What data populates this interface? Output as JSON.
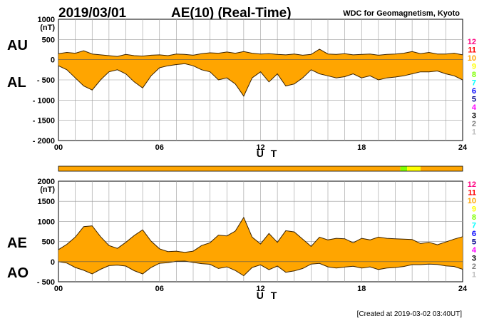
{
  "header": {
    "date": "2019/03/01",
    "title": "AE(10) (Real-Time)",
    "source": "WDC for Geomagnetism, Kyoto"
  },
  "footer": {
    "created": "[Created at 2019-03-02 03:40UT]"
  },
  "legend": {
    "items": [
      {
        "label": "12",
        "color": "#ff0080"
      },
      {
        "label": "11",
        "color": "#ff0000"
      },
      {
        "label": "10",
        "color": "#ffa500"
      },
      {
        "label": "9",
        "color": "#ffff00"
      },
      {
        "label": "8",
        "color": "#7fff00"
      },
      {
        "label": "7",
        "color": "#00ffff"
      },
      {
        "label": "6",
        "color": "#0000ff"
      },
      {
        "label": "5",
        "color": "#00008b"
      },
      {
        "label": "4",
        "color": "#ff00ff"
      },
      {
        "label": "3",
        "color": "#000000"
      },
      {
        "label": "2",
        "color": "#808080"
      },
      {
        "label": "1",
        "color": "#c0c0c0"
      }
    ]
  },
  "chart_data": [
    {
      "type": "area",
      "panel": "AU/AL",
      "ylabel_top": "AU",
      "ylabel_bottom": "AL",
      "unit": "(nT)",
      "xlabel": "U T",
      "xlim": [
        0,
        24
      ],
      "ylim": [
        -2000,
        1000
      ],
      "x_ticks": [
        "00",
        "06",
        "12",
        "18",
        "24"
      ],
      "y_ticks": [
        "1000",
        "500",
        "0",
        "- 500",
        "- 1000",
        "- 1500",
        "- 2000"
      ],
      "y_tick_values": [
        1000,
        500,
        0,
        -500,
        -1000,
        -1500,
        -2000
      ],
      "grid": true,
      "fill_color": "#ffa500",
      "series": [
        {
          "name": "AU",
          "x": [
            0,
            0.5,
            1,
            1.5,
            2,
            2.5,
            3,
            3.5,
            4,
            4.5,
            5,
            5.5,
            6,
            6.5,
            7,
            7.5,
            8,
            8.5,
            9,
            9.5,
            10,
            10.5,
            11,
            11.5,
            12,
            12.5,
            13,
            13.5,
            14,
            14.5,
            15,
            15.5,
            16,
            16.5,
            17,
            17.5,
            18,
            18.5,
            19,
            19.5,
            20,
            20.5,
            21,
            21.5,
            22,
            22.5,
            23,
            23.5,
            24
          ],
          "values": [
            150,
            180,
            160,
            220,
            140,
            120,
            100,
            80,
            130,
            100,
            90,
            110,
            120,
            100,
            140,
            130,
            110,
            150,
            170,
            160,
            190,
            160,
            200,
            160,
            140,
            150,
            130,
            120,
            140,
            110,
            130,
            260,
            140,
            130,
            150,
            120,
            130,
            140,
            110,
            130,
            140,
            160,
            200,
            150,
            180,
            140,
            140,
            160,
            120
          ]
        },
        {
          "name": "AL",
          "x": [
            0,
            0.5,
            1,
            1.5,
            2,
            2.5,
            3,
            3.5,
            4,
            4.5,
            5,
            5.5,
            6,
            6.5,
            7,
            7.5,
            8,
            8.5,
            9,
            9.5,
            10,
            10.5,
            11,
            11.5,
            12,
            12.5,
            13,
            13.5,
            14,
            14.5,
            15,
            15.5,
            16,
            16.5,
            17,
            17.5,
            18,
            18.5,
            19,
            19.5,
            20,
            20.5,
            21,
            21.5,
            22,
            22.5,
            23,
            23.5,
            24
          ],
          "values": [
            -150,
            -250,
            -450,
            -650,
            -750,
            -500,
            -300,
            -250,
            -350,
            -550,
            -700,
            -400,
            -200,
            -150,
            -120,
            -100,
            -150,
            -250,
            -300,
            -500,
            -450,
            -600,
            -900,
            -450,
            -300,
            -550,
            -350,
            -650,
            -600,
            -450,
            -250,
            -350,
            -400,
            -450,
            -420,
            -350,
            -450,
            -400,
            -500,
            -450,
            -430,
            -400,
            -350,
            -300,
            -300,
            -280,
            -350,
            -400,
            -500
          ]
        }
      ]
    },
    {
      "type": "area",
      "panel": "AE/AO",
      "ylabel_top": "AE",
      "ylabel_bottom": "AO",
      "unit": "(nT)",
      "xlabel": "U T",
      "xlim": [
        0,
        24
      ],
      "ylim": [
        -500,
        2000
      ],
      "x_ticks": [
        "00",
        "06",
        "12",
        "18",
        "24"
      ],
      "y_ticks": [
        "2000",
        "1500",
        "1000",
        "500",
        "0",
        "- 500"
      ],
      "y_tick_values": [
        2000,
        1500,
        1000,
        500,
        0,
        -500
      ],
      "grid": true,
      "fill_color": "#ffa500",
      "series": [
        {
          "name": "AE",
          "x": [
            0,
            0.5,
            1,
            1.5,
            2,
            2.5,
            3,
            3.5,
            4,
            4.5,
            5,
            5.5,
            6,
            6.5,
            7,
            7.5,
            8,
            8.5,
            9,
            9.5,
            10,
            10.5,
            11,
            11.5,
            12,
            12.5,
            13,
            13.5,
            14,
            14.5,
            15,
            15.5,
            16,
            16.5,
            17,
            17.5,
            18,
            18.5,
            19,
            19.5,
            20,
            20.5,
            21,
            21.5,
            22,
            22.5,
            23,
            23.5,
            24
          ],
          "values": [
            300,
            430,
            610,
            870,
            890,
            620,
            400,
            330,
            480,
            650,
            790,
            510,
            320,
            250,
            260,
            230,
            260,
            400,
            470,
            660,
            640,
            760,
            1100,
            610,
            440,
            700,
            480,
            770,
            740,
            560,
            380,
            610,
            540,
            580,
            570,
            470,
            580,
            540,
            610,
            580,
            570,
            560,
            550,
            450,
            480,
            420,
            490,
            560,
            620
          ]
        },
        {
          "name": "AO",
          "x": [
            0,
            0.5,
            1,
            1.5,
            2,
            2.5,
            3,
            3.5,
            4,
            4.5,
            5,
            5.5,
            6,
            6.5,
            7,
            7.5,
            8,
            8.5,
            9,
            9.5,
            10,
            10.5,
            11,
            11.5,
            12,
            12.5,
            13,
            13.5,
            14,
            14.5,
            15,
            15.5,
            16,
            16.5,
            17,
            17.5,
            18,
            18.5,
            19,
            19.5,
            20,
            20.5,
            21,
            21.5,
            22,
            22.5,
            23,
            23.5,
            24
          ],
          "values": [
            0,
            -35,
            -145,
            -215,
            -305,
            -190,
            -100,
            -85,
            -110,
            -225,
            -305,
            -145,
            -40,
            -25,
            10,
            15,
            -20,
            -50,
            -65,
            -170,
            -130,
            -220,
            -350,
            -145,
            -80,
            -200,
            -110,
            -265,
            -230,
            -170,
            -60,
            -45,
            -130,
            -160,
            -135,
            -115,
            -160,
            -130,
            -195,
            -160,
            -145,
            -120,
            -75,
            -75,
            -60,
            -70,
            -105,
            -120,
            -190
          ]
        }
      ]
    }
  ],
  "colorbar": {
    "segments": [
      {
        "from": 0,
        "to": 20.3,
        "color": "#ffa500"
      },
      {
        "from": 20.3,
        "to": 20.7,
        "color": "#7fff00"
      },
      {
        "from": 20.7,
        "to": 21.5,
        "color": "#ffff00"
      },
      {
        "from": 21.5,
        "to": 24,
        "color": "#ffa500"
      }
    ]
  }
}
